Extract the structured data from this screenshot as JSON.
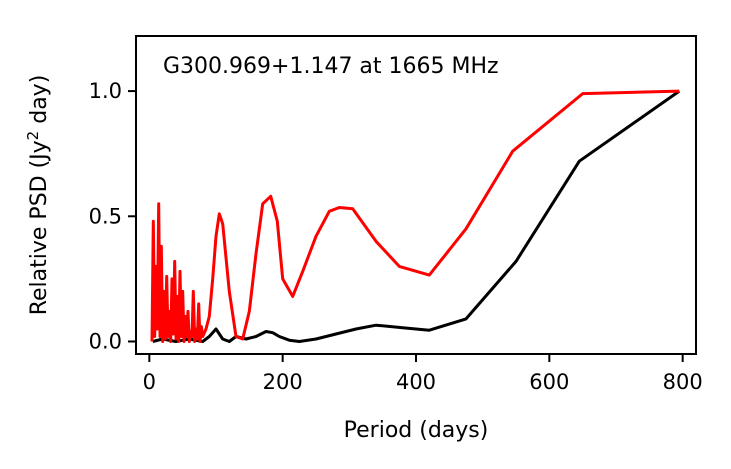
{
  "chart_data": {
    "type": "line",
    "annotation": "G300.969+1.147 at 1665 MHz",
    "xlabel": "Period (days)",
    "ylabel": "Relative PSD (Jy",
    "ylabel_sup": "2",
    "ylabel_tail": " day)",
    "xlim": [
      -20,
      820
    ],
    "ylim": [
      -0.05,
      1.22
    ],
    "xticks": [
      0,
      200,
      400,
      600,
      800
    ],
    "xtick_labels": [
      "0",
      "200",
      "400",
      "600",
      "800"
    ],
    "yticks": [
      0.0,
      0.5,
      1.0
    ],
    "ytick_labels": [
      "0.0",
      "0.5",
      "1.0"
    ],
    "grid": false,
    "series": [
      {
        "color": "#000000",
        "x": [
          5,
          20,
          40,
          60,
          80,
          90,
          100,
          110,
          120,
          130,
          145,
          160,
          175,
          185,
          195,
          210,
          225,
          250,
          280,
          310,
          340,
          380,
          420,
          475,
          550,
          645,
          795
        ],
        "y": [
          0.0,
          0.01,
          0.0,
          0.01,
          0.0,
          0.02,
          0.05,
          0.01,
          0.0,
          0.02,
          0.01,
          0.02,
          0.04,
          0.035,
          0.02,
          0.005,
          0.0,
          0.01,
          0.03,
          0.05,
          0.065,
          0.055,
          0.045,
          0.09,
          0.32,
          0.72,
          1.0
        ]
      },
      {
        "color": "#ff0000",
        "x": [
          4,
          6,
          8,
          10,
          12,
          14,
          16,
          18,
          20,
          22,
          24,
          26,
          28,
          30,
          32,
          34,
          36,
          38,
          40,
          42,
          44,
          46,
          48,
          50,
          52,
          54,
          56,
          58,
          60,
          62,
          64,
          66,
          68,
          70,
          72,
          74,
          76,
          78,
          80,
          85,
          90,
          95,
          100,
          105,
          110,
          120,
          130,
          140,
          150,
          160,
          170,
          182,
          192,
          200,
          215,
          230,
          250,
          270,
          285,
          305,
          340,
          375,
          420,
          475,
          545,
          650,
          795
        ],
        "y": [
          0.0,
          0.48,
          0.02,
          0.3,
          0.05,
          0.55,
          0.02,
          0.38,
          0.0,
          0.2,
          0.01,
          0.26,
          0.02,
          0.12,
          0.0,
          0.25,
          0.03,
          0.32,
          0.01,
          0.18,
          0.0,
          0.28,
          0.02,
          0.2,
          0.0,
          0.1,
          0.02,
          0.12,
          0.0,
          0.04,
          0.02,
          0.2,
          0.0,
          0.05,
          0.01,
          0.15,
          0.0,
          0.06,
          0.02,
          0.05,
          0.1,
          0.25,
          0.42,
          0.51,
          0.47,
          0.2,
          0.02,
          0.01,
          0.12,
          0.35,
          0.55,
          0.58,
          0.48,
          0.25,
          0.18,
          0.28,
          0.42,
          0.52,
          0.535,
          0.53,
          0.4,
          0.3,
          0.265,
          0.45,
          0.76,
          0.99,
          1.0
        ]
      }
    ]
  }
}
